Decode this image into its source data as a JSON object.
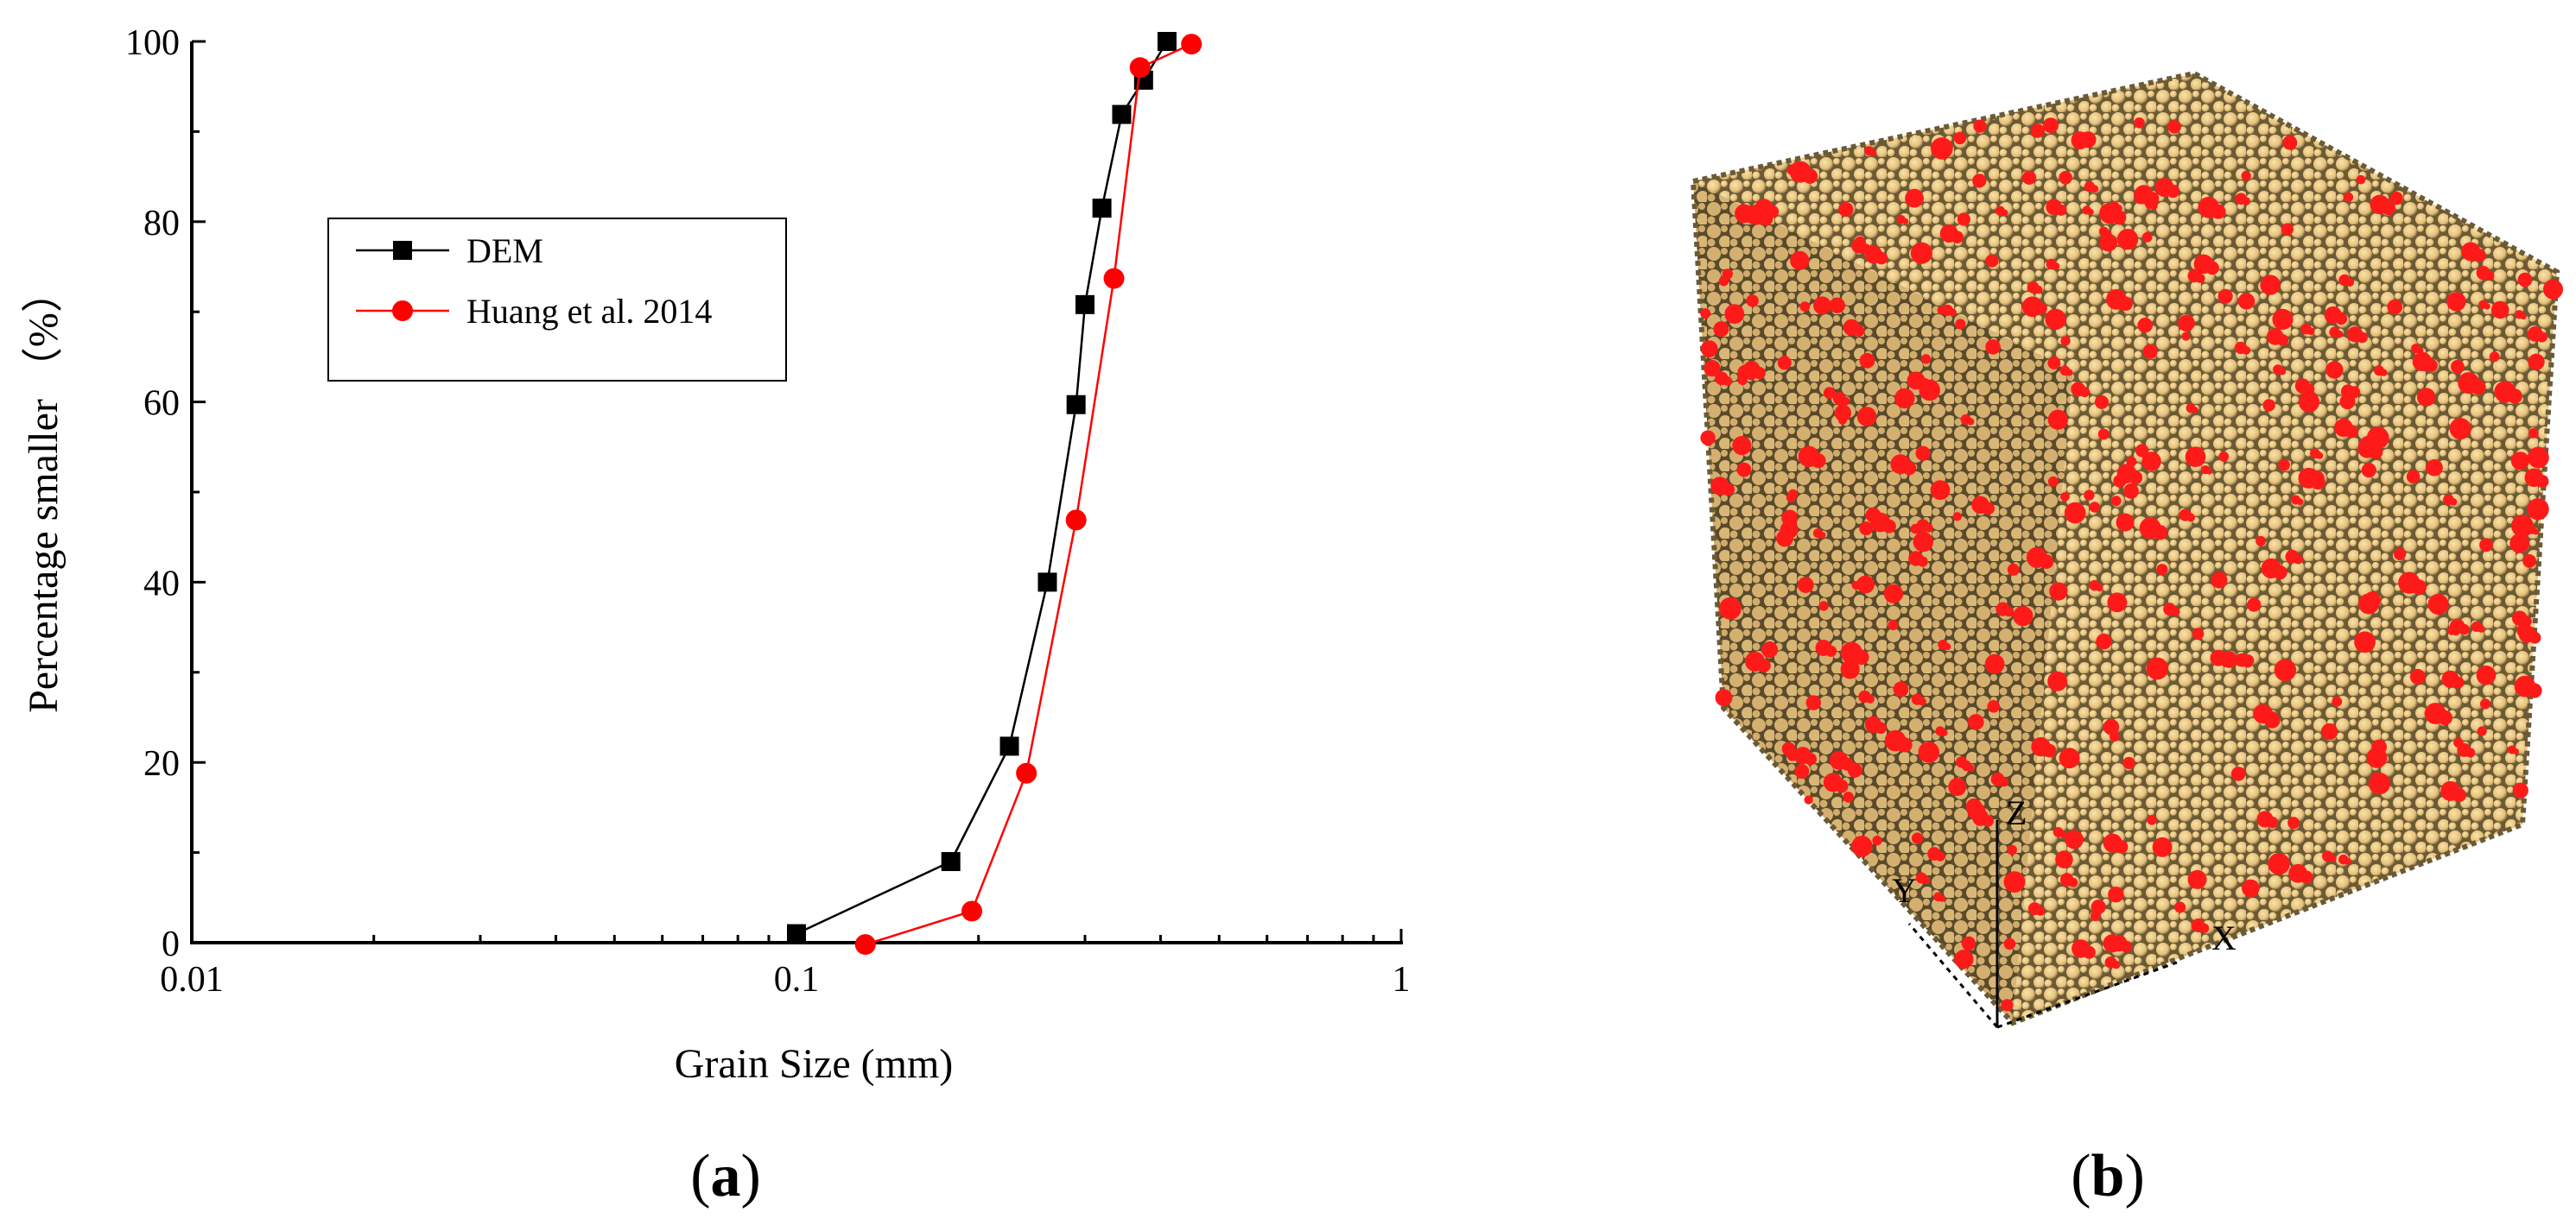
{
  "chart_data": {
    "type": "line",
    "title": "",
    "xlabel": "Grain Size (mm)",
    "ylabel": "Percentage smaller （%）",
    "xscale": "log",
    "xlim": [
      0.01,
      1
    ],
    "ylim": [
      0,
      100
    ],
    "xticks": [
      0.01,
      0.1,
      1
    ],
    "xtick_labels": [
      "0.01",
      "0.1",
      "1"
    ],
    "yticks": [
      0,
      20,
      40,
      60,
      80,
      100
    ],
    "ytick_labels": [
      "0",
      "20",
      "40",
      "60",
      "80",
      "100"
    ],
    "legend_position": "upper-left",
    "series": [
      {
        "name": "DEM",
        "color": "#000000",
        "marker": "square",
        "x": [
          0.1,
          0.18,
          0.225,
          0.26,
          0.29,
          0.3,
          0.32,
          0.345,
          0.375,
          0.41
        ],
        "y": [
          1,
          9,
          21.8,
          40,
          59.7,
          70.8,
          81.5,
          91.9,
          95.7,
          100
        ]
      },
      {
        "name": "Huang et al. 2014",
        "color": "#ff0000",
        "marker": "circle",
        "x": [
          0.13,
          0.195,
          0.24,
          0.29,
          0.335,
          0.37,
          0.45
        ],
        "y": [
          -0.2,
          3.5,
          18.8,
          46.9,
          73.7,
          97.1,
          99.7
        ]
      }
    ]
  },
  "labels": {
    "panel_a_text": "a",
    "panel_b_text": "b",
    "paren_open": "(",
    "paren_close": ")"
  },
  "render": {
    "panel_b_particle_color": "#e9c98a",
    "panel_b_highlight_color": "#ff1a1a",
    "panel_b_shadow_color": "#6b5a35",
    "axis_triad_labels": [
      "Z",
      "Y",
      "X"
    ]
  }
}
